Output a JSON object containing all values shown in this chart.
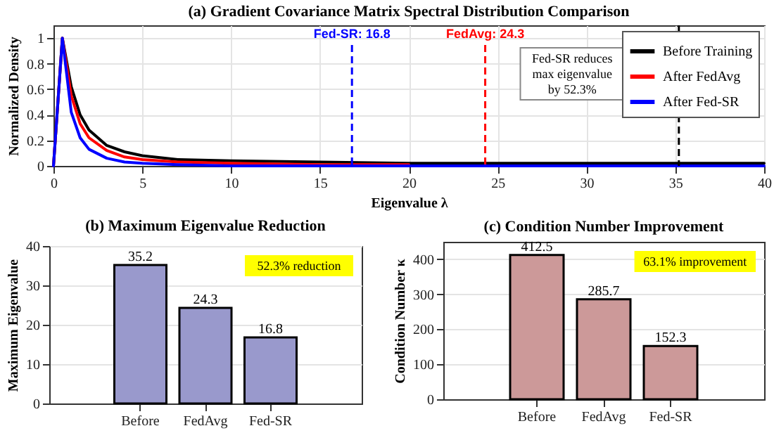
{
  "chart_data": [
    {
      "type": "line",
      "title": "(a) Gradient Covariance Matrix Spectral Distribution Comparison",
      "xlabel": "Eigenvalue λ",
      "ylabel": "Normalized Density",
      "x": [
        0,
        0.5,
        1,
        1.5,
        2,
        3,
        4,
        5,
        7,
        10,
        15,
        20,
        25,
        30,
        35,
        40
      ],
      "series": [
        {
          "name": "Before Training",
          "color": "#000000",
          "values": [
            0,
            1,
            0.62,
            0.4,
            0.28,
            0.16,
            0.11,
            0.08,
            0.05,
            0.04,
            0.03,
            0.02,
            0.02,
            0.02,
            0.02,
            0.02
          ]
        },
        {
          "name": "After FedAvg",
          "color": "#ff0000",
          "values": [
            0,
            1,
            0.55,
            0.33,
            0.22,
            0.12,
            0.07,
            0.05,
            0.03,
            0.02,
            0.01,
            0.01,
            null,
            null,
            null,
            null
          ]
        },
        {
          "name": "After Fed-SR",
          "color": "#0000ff",
          "values": [
            0,
            1,
            0.42,
            0.22,
            0.13,
            0.06,
            0.03,
            0.02,
            0.01,
            0,
            0,
            0,
            0,
            0,
            0,
            0
          ]
        }
      ],
      "xlim": [
        0,
        40
      ],
      "xticks": [
        0,
        5,
        10,
        15,
        20,
        25,
        30,
        35,
        40
      ],
      "ylim": [
        0,
        1.1
      ],
      "yticks": [
        0,
        0.2,
        0.4,
        0.6,
        0.8,
        1
      ],
      "ref_lines": [
        {
          "axis": "x",
          "value": 16.8,
          "label": "Fed-SR: 16.8",
          "color": "#0000ff",
          "line_style": "dashed"
        },
        {
          "axis": "x",
          "value": 24.3,
          "label": "FedAvg: 24.3",
          "color": "#ff0000",
          "line_style": "dashed"
        },
        {
          "axis": "x",
          "value": 35.2,
          "label": null,
          "color": "#000000",
          "line_style": "dashed"
        }
      ],
      "annotations": [
        "Fed-SR reduces\nmax eigenvalue\nby 52.3%"
      ],
      "grid": true,
      "legend": "top right",
      "marker": "none",
      "line_style": "solid"
    },
    {
      "type": "bar",
      "title": "(b) Maximum Eigenvalue Reduction",
      "ylabel": "Maximum Eigenvalue",
      "categories": [
        "Before",
        "FedAvg",
        "Fed-SR"
      ],
      "values": [
        35.2,
        24.3,
        16.8
      ],
      "color": "#9999cc",
      "ylim": [
        0,
        40
      ],
      "yticks": [
        0,
        10,
        20,
        30,
        40
      ],
      "data_labels": true,
      "grid": true,
      "annotations": [
        "52.3% reduction"
      ]
    },
    {
      "type": "bar",
      "title": "(c) Condition Number Improvement",
      "ylabel": "Condition Number κ",
      "categories": [
        "Before",
        "FedAvg",
        "Fed-SR"
      ],
      "values": [
        412.5,
        285.7,
        152.3
      ],
      "color": "#cc9999",
      "ylim": [
        0,
        450
      ],
      "yticks": [
        0,
        100,
        200,
        300,
        400
      ],
      "data_labels": true,
      "grid": true,
      "annotations": [
        "63.1% improvement"
      ]
    }
  ]
}
